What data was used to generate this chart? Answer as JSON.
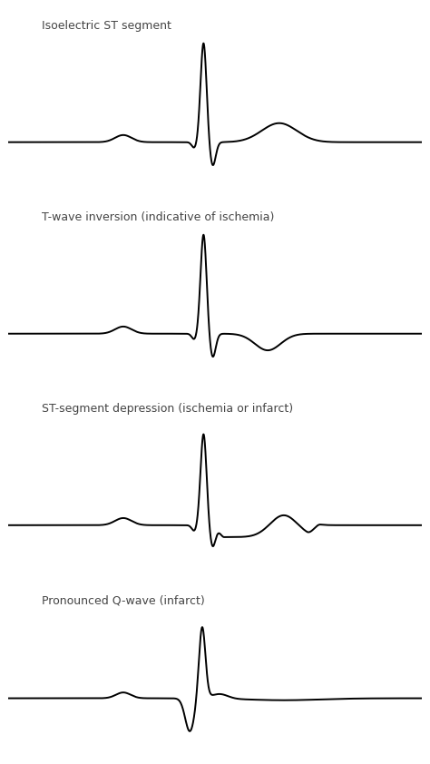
{
  "titles": [
    "Isoelectric ST segment",
    "T-wave inversion (indicative of ischemia)",
    "ST-segment depression (ischemia or infarct)",
    "Pronounced Q-wave (infarct)"
  ],
  "background_color": "#ffffff",
  "line_color": "#000000",
  "line_width": 1.4,
  "title_fontsize": 9,
  "figsize": [
    4.74,
    8.42
  ],
  "dpi": 100
}
